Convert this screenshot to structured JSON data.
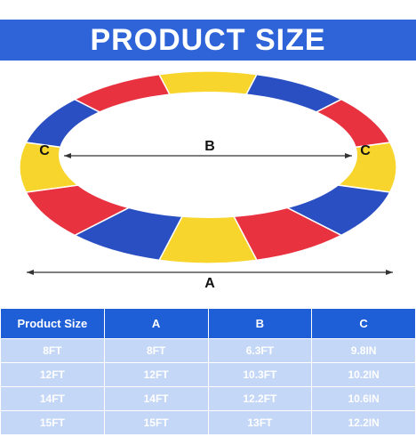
{
  "header": {
    "title": "PRODUCT SIZE"
  },
  "diagram": {
    "labels": {
      "inner_diameter": "B",
      "ring_width_left": "C",
      "ring_width_right": "C",
      "outer_diameter": "A"
    }
  },
  "table": {
    "columns": [
      "Product Size",
      "A",
      "B",
      "C"
    ],
    "rows": [
      [
        "8FT",
        "8FT",
        "6.3FT",
        "9.8IN"
      ],
      [
        "12FT",
        "12FT",
        "10.3FT",
        "10.2IN"
      ],
      [
        "14FT",
        "14FT",
        "12.2FT",
        "10.6IN"
      ],
      [
        "15FT",
        "15FT",
        "13FT",
        "12.2IN"
      ]
    ]
  }
}
